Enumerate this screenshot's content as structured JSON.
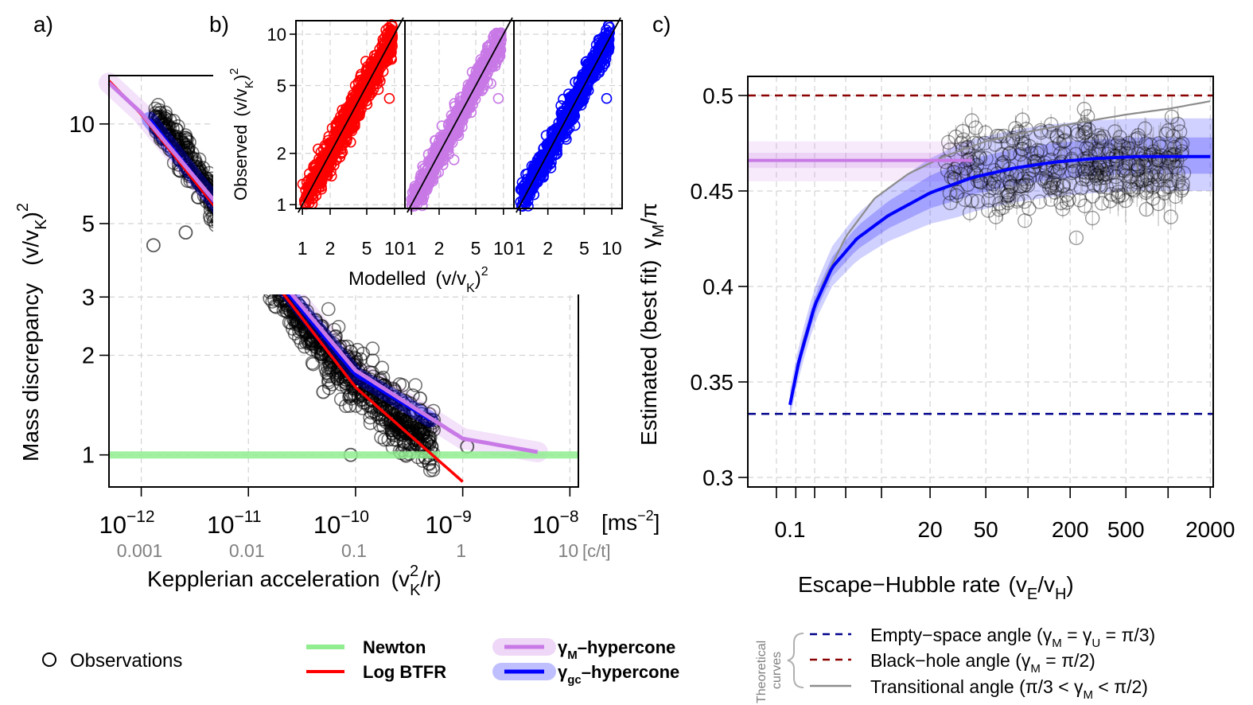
{
  "chart_data": [
    {
      "type": "scatter",
      "panel_label": "a)",
      "title": "",
      "xlabel": "Kepplerian acceleration",
      "xlabel_expr": "(v",
      "xlabel_expr_sup": "2",
      "xlabel_expr_sub": "K",
      "xlabel_expr_end": "/r)",
      "ylabel": "Mass discrepancy",
      "ylabel_expr": "(v/v",
      "ylabel_expr_sub": "K",
      "ylabel_expr_end": ")",
      "ylabel_expr_sup": "2",
      "x_scale": "log",
      "y_scale": "log",
      "xlim": [
        5e-13,
        1.2e-08
      ],
      "ylim": [
        0.8,
        14
      ],
      "x_ticks": [
        {
          "value": 1e-12,
          "base": "10",
          "exp": "−12",
          "alt": "0.001"
        },
        {
          "value": 1e-11,
          "base": "10",
          "exp": "−11",
          "alt": "0.01"
        },
        {
          "value": 1e-10,
          "base": "10",
          "exp": "−10",
          "alt": "0.1"
        },
        {
          "value": 1e-09,
          "base": "10",
          "exp": "−9",
          "alt": "1"
        },
        {
          "value": 1e-08,
          "base": "10",
          "exp": "−8",
          "alt": "10"
        }
      ],
      "x_unit_main": "[ms",
      "x_unit_main_sup": "−2",
      "x_unit_main_end": "]",
      "x_unit_alt": "[c/t]",
      "y_ticks": [
        "1",
        "2",
        "3",
        "5",
        "10"
      ],
      "series": [
        {
          "name": "Observations",
          "color": "#404040",
          "trend": [
            [
              1.4e-12,
              10.5
            ],
            [
              3e-12,
              7.5
            ],
            [
              6e-12,
              5.2
            ],
            [
              1e-11,
              4.2
            ],
            [
              2e-11,
              3.1
            ],
            [
              4e-11,
              2.3
            ],
            [
              8e-11,
              1.8
            ],
            [
              1.5e-10,
              1.45
            ],
            [
              3e-10,
              1.2
            ],
            [
              5e-10,
              1.1
            ]
          ]
        },
        {
          "name": "Newton",
          "color": "#90ee90",
          "x": [
            5e-13,
            1.2e-08
          ],
          "y": [
            1,
            1
          ]
        },
        {
          "name": "Log BTFR",
          "color": "#ff0000",
          "x": [
            5e-13,
            1e-12,
            1e-11,
            1e-10,
            1e-09
          ],
          "y": [
            13.5,
            10.7,
            4.2,
            1.6,
            0.83
          ]
        },
        {
          "name": "γM–hypercone",
          "color": "#c879e6",
          "x": [
            5e-13,
            1e-12,
            1e-11,
            1e-10,
            1e-09,
            5e-09
          ],
          "y": [
            13.3,
            10.8,
            4.4,
            1.8,
            1.12,
            1.02
          ]
        },
        {
          "name": "γgc–hypercone",
          "color": "#0000ff",
          "x": [
            1.2e-12,
            1e-11,
            1e-10,
            5e-10
          ],
          "y": [
            10.3,
            4.3,
            1.75,
            1.28
          ]
        }
      ],
      "outliers": [
        [
          1.3e-12,
          4.3
        ],
        [
          1.5e-12,
          10.8
        ],
        [
          2.6e-12,
          4.7
        ],
        [
          9e-11,
          2.05
        ],
        [
          5e-11,
          1.55
        ],
        [
          4e-10,
          1.48
        ],
        [
          4.5e-10,
          1.28
        ],
        [
          1.1e-09,
          1.06
        ],
        [
          9e-11,
          1.0
        ]
      ]
    },
    {
      "type": "scatter",
      "panel_label": "b)",
      "title": "",
      "xlabel": "Modelled",
      "xlabel_expr": "(v/v",
      "xlabel_expr_sub": "K",
      "xlabel_expr_end": ")",
      "xlabel_expr_sup": "2",
      "ylabel": "Observed",
      "ylabel_expr": "(v/v",
      "ylabel_expr_sub": "K",
      "ylabel_expr_end": ")",
      "ylabel_expr_sup": "2",
      "x_scale": "log",
      "y_scale": "log",
      "xlim": [
        0.85,
        13
      ],
      "ylim": [
        0.95,
        12
      ],
      "ticks": [
        "1",
        "2",
        "5",
        "10"
      ],
      "subpanels": [
        {
          "name": "Log BTFR",
          "color": "#ff0000"
        },
        {
          "name": "γM–hypercone",
          "color": "#c879e6"
        },
        {
          "name": "γgc–hypercone",
          "color": "#0000ff"
        }
      ],
      "identity_line": true
    },
    {
      "type": "line",
      "panel_label": "c)",
      "title": "",
      "xlabel": "Escape−Hubble rate",
      "xlabel_expr": "(v",
      "xlabel_expr_sub1": "E",
      "xlabel_expr_mid": "/v",
      "xlabel_expr_sub2": "H",
      "xlabel_expr_end": ")",
      "ylabel": "Estimated (best fit)",
      "ylabel_expr": "γ",
      "ylabel_expr_sub": "M",
      "ylabel_expr_end": "/π",
      "x_scale": "log",
      "xlim": [
        1,
        2100
      ],
      "ylim": [
        0.295,
        0.51
      ],
      "x_ticks": [
        "0.1",
        "20",
        "50",
        "200",
        "500",
        "2000"
      ],
      "y_ticks": [
        "0.3",
        "0.35",
        "0.4",
        "0.45",
        "0.5"
      ],
      "reference_lines": [
        {
          "name": "Empty−space angle",
          "value": 0.3333,
          "color": "#00008b",
          "style": "dashed"
        },
        {
          "name": "Black−hole angle",
          "value": 0.5,
          "color": "#8b0000",
          "style": "dashed"
        }
      ],
      "series": [
        {
          "name": "Transitional angle",
          "color": "#8c8c8c",
          "x": [
            2,
            2.5,
            3.5,
            5,
            8,
            14,
            25,
            50,
            100,
            200,
            500,
            1000,
            2000
          ],
          "y": [
            0.34,
            0.372,
            0.403,
            0.426,
            0.446,
            0.459,
            0.468,
            0.476,
            0.481,
            0.485,
            0.49,
            0.493,
            0.497
          ]
        },
        {
          "name": "γgc–hypercone",
          "color": "#0000ff",
          "x": [
            2,
            2.3,
            3,
            4,
            6,
            10,
            20,
            40,
            80,
            150,
            300,
            600,
            1000,
            2000
          ],
          "y": [
            0.338,
            0.36,
            0.39,
            0.41,
            0.425,
            0.437,
            0.449,
            0.457,
            0.462,
            0.465,
            0.467,
            0.468,
            0.468,
            0.468
          ]
        },
        {
          "name": "γM–hypercone",
          "color": "#c879e6",
          "x": [
            1,
            40
          ],
          "y": [
            0.466,
            0.466
          ]
        }
      ],
      "observations": {
        "x_range": [
          25,
          1300
        ],
        "y_center": 0.463,
        "y_spread": 0.011
      }
    }
  ],
  "legend_left": {
    "observations": "Observations",
    "newton": "Newton",
    "log_btfr": "Log BTFR",
    "gm_hypercone": "γ",
    "gm_sub": "M",
    "gm_rest": "–hypercone",
    "ggc_hypercone": "γ",
    "ggc_sub": "gc",
    "ggc_rest": "–hypercone"
  },
  "legend_right": {
    "group_label_1": "Theoretical",
    "group_label_2": "curves",
    "empty_space": "Empty−space angle (γ",
    "empty_space_sub1": "M",
    "empty_space_mid": " = γ",
    "empty_space_sub2": "U",
    "empty_space_end": " = π/3)",
    "black_hole": "Black−hole angle (γ",
    "black_hole_sub": "M",
    "black_hole_end": " = π/2)",
    "transitional": "Transitional angle (π/3 < γ",
    "transitional_sub": "M",
    "transitional_end": " < π/2)"
  },
  "colors": {
    "observations": "#404040",
    "newton": "#90ee90",
    "log_btfr": "#ff0000",
    "gm_hypercone": "#c879e6",
    "ggc_hypercone": "#0000ff",
    "empty_space": "#00008b",
    "black_hole": "#8b0000",
    "transitional": "#8c8c8c"
  }
}
